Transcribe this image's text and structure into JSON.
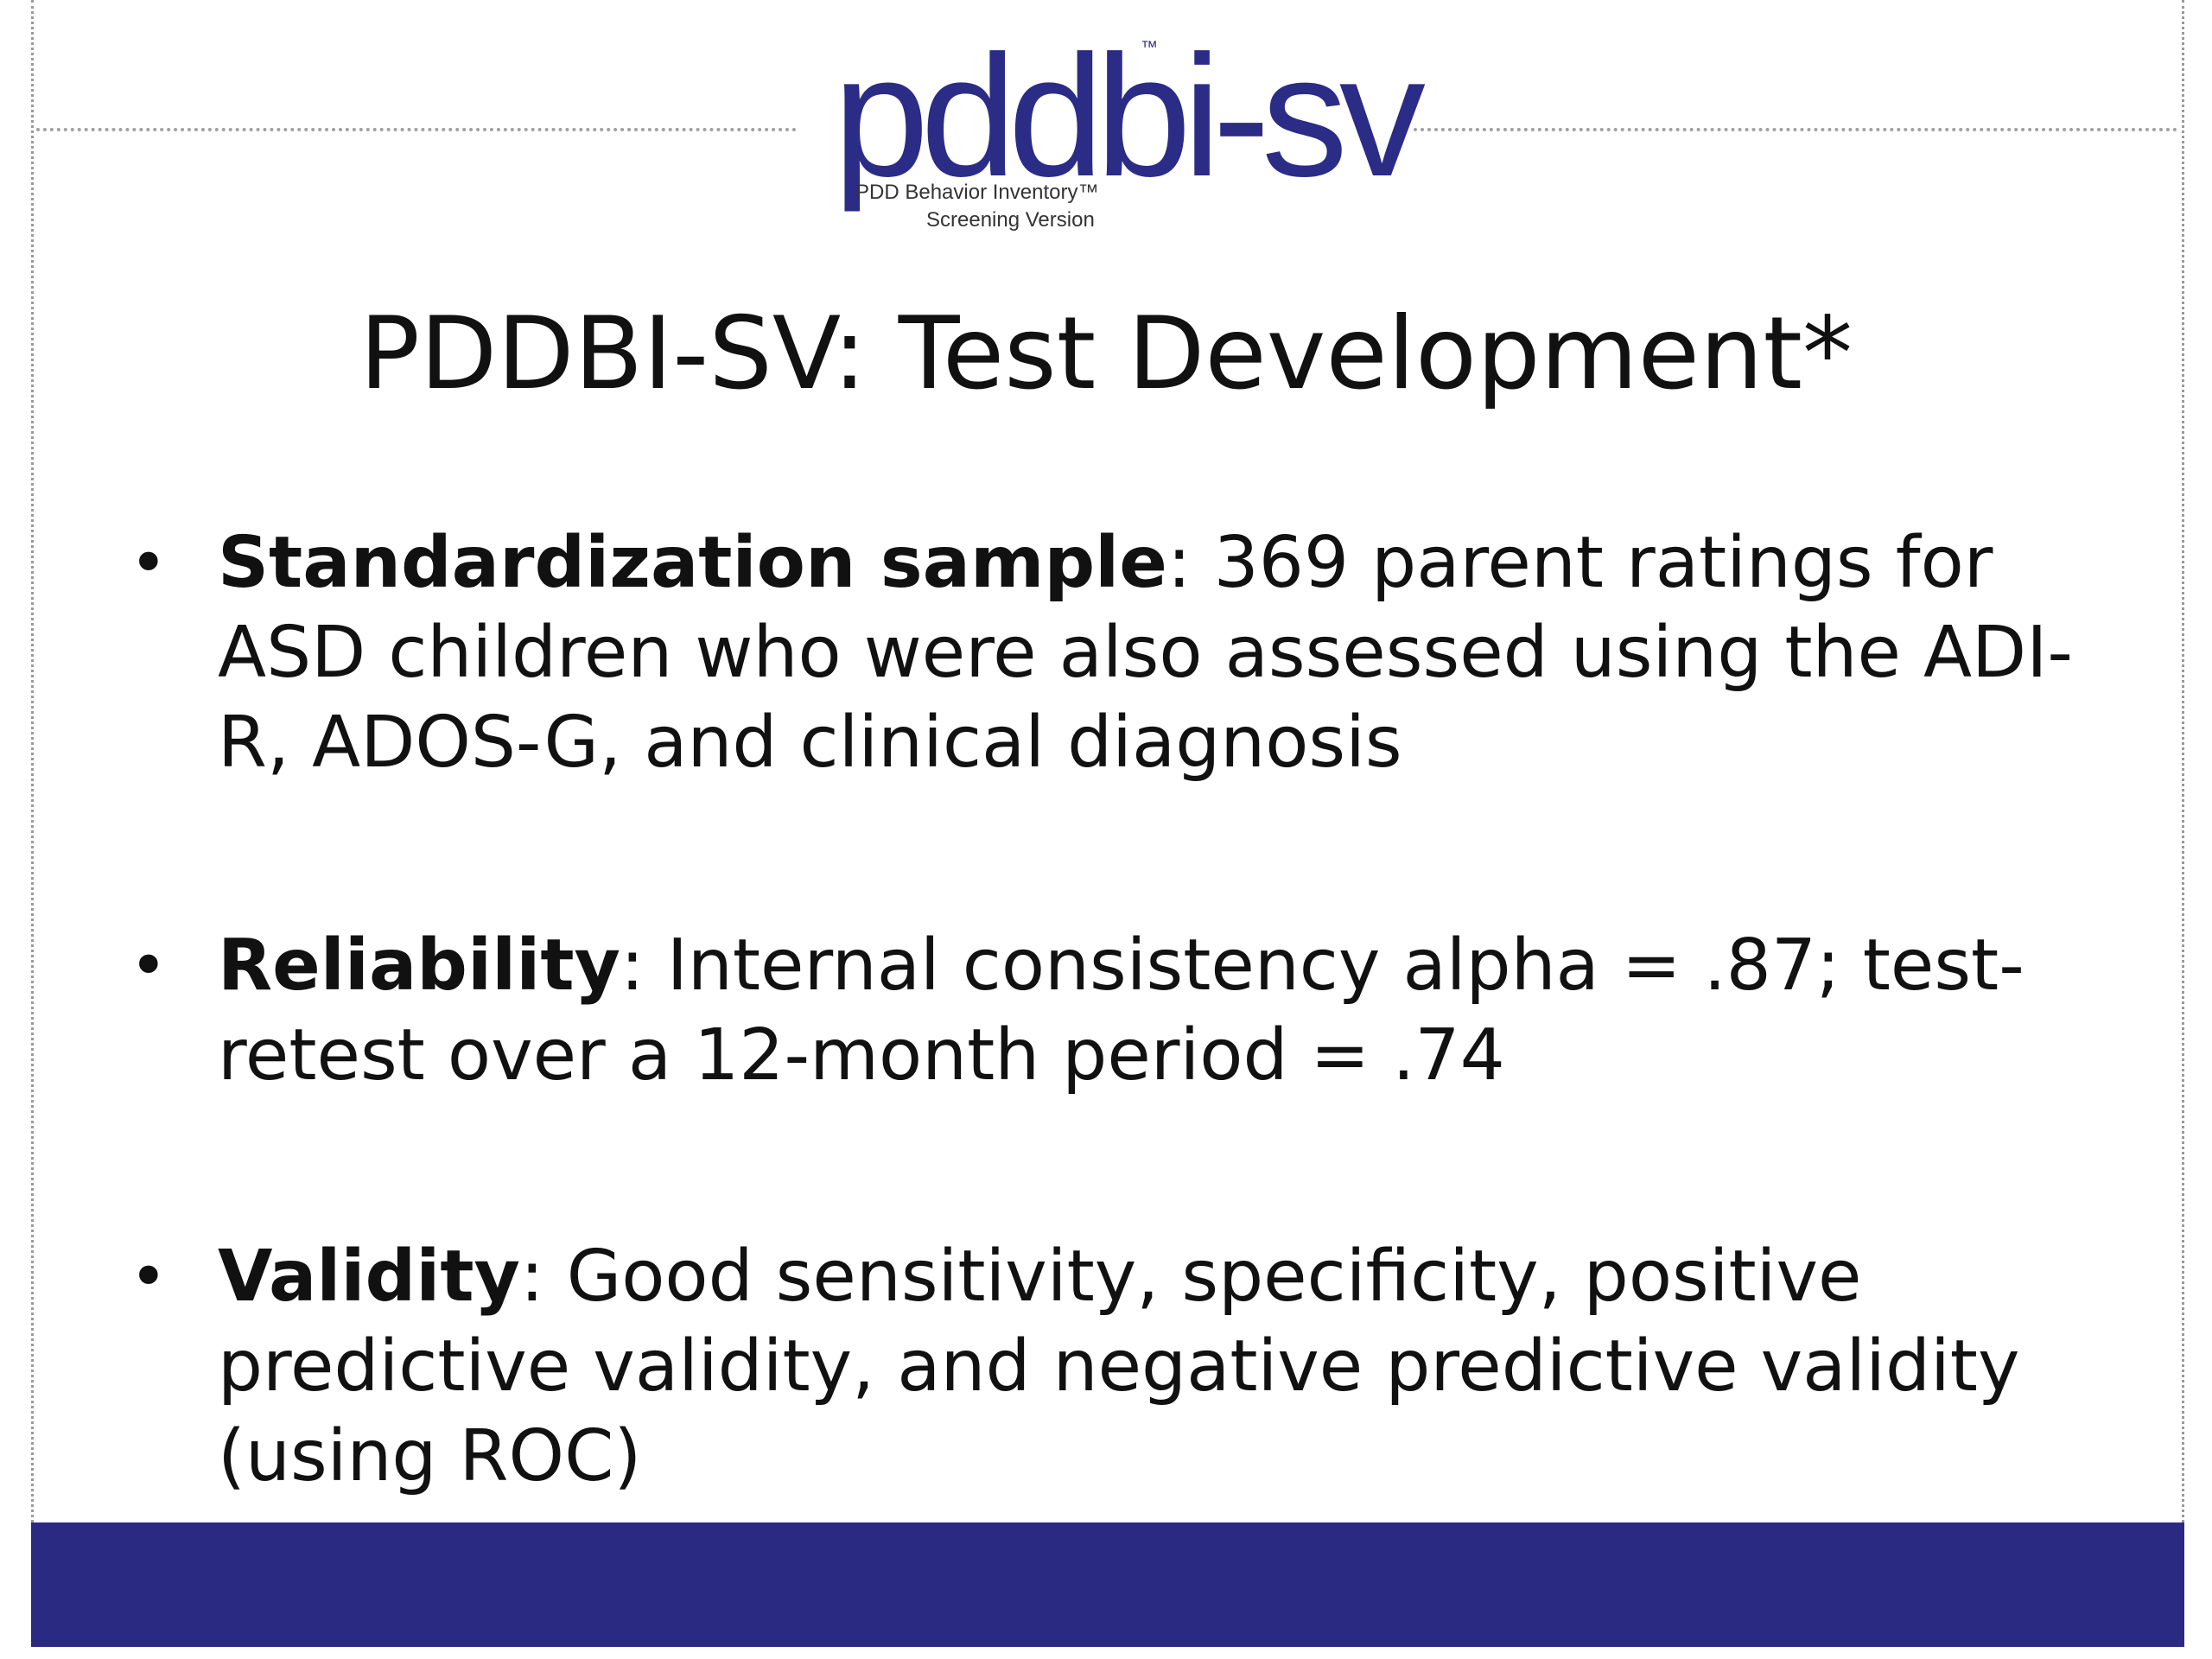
{
  "logo": {
    "mark": "pddbi-sv",
    "trademark": "™",
    "line1": "PDD Behavior Inventory™",
    "line2": "Screening Version"
  },
  "title": "PDDBI-SV: Test Development*",
  "bullets": [
    {
      "term": "Standardization sample",
      "separator": ":",
      "text": " 369 parent ratings for ASD children who were also assessed using the ADI-R, ADOS-G, and clinical diagnosis"
    },
    {
      "term": "Reliability",
      "separator": ":",
      "text": " Internal consistency alpha = .87; test-retest over a 12-month period = .74"
    },
    {
      "term": "Validity",
      "separator": ":",
      "text": " Good sensitivity, specificity, positive predictive validity, and negative predictive validity (using ROC)"
    }
  ],
  "colors": {
    "brand_blue": "#2a2c86",
    "footer_bar": "#2b2a83"
  }
}
